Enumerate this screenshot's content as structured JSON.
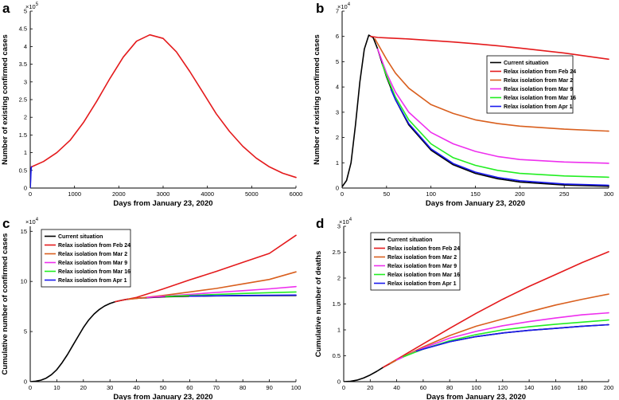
{
  "colors": {
    "current": "#000000",
    "feb24": "#e41a1c",
    "mar2": "#d95f1e",
    "mar9": "#ee2fee",
    "mar16": "#22ee22",
    "apr1": "#1a1aee"
  },
  "chart_data": [
    {
      "panel": "a",
      "type": "line",
      "xlabel": "Days from January 23, 2020",
      "ylabel": "Number of existing confirmed cases",
      "y_exponent": "5",
      "xlim": [
        0,
        6000
      ],
      "ylim": [
        0,
        500000
      ],
      "xticks": [
        0,
        1000,
        2000,
        3000,
        4000,
        5000,
        6000
      ],
      "yticks": [
        0,
        0.5,
        1,
        1.5,
        2,
        2.5,
        3,
        3.5,
        4,
        4.5,
        5
      ],
      "y_scale": 100000,
      "legend": null,
      "series": [
        {
          "name": "Relax isolation",
          "color_key": "feb24",
          "x": [
            0,
            30,
            300,
            600,
            900,
            1200,
            1500,
            1800,
            2100,
            2400,
            2700,
            3000,
            3300,
            3600,
            3900,
            4200,
            4500,
            4800,
            5100,
            5400,
            5700,
            6000
          ],
          "y": [
            60000,
            60000,
            75000,
            100000,
            135000,
            185000,
            245000,
            310000,
            370000,
            415000,
            433000,
            423000,
            385000,
            330000,
            270000,
            210000,
            160000,
            118000,
            85000,
            60000,
            42000,
            30000
          ]
        },
        {
          "name": "Current situation",
          "color_key": "apr1",
          "x": [
            0,
            3,
            6,
            10,
            14,
            18,
            22,
            26,
            30
          ],
          "y": [
            0,
            5000,
            12000,
            25000,
            38000,
            48000,
            55000,
            59000,
            60000
          ]
        }
      ]
    },
    {
      "panel": "b",
      "type": "line",
      "xlabel": "Days from January 23, 2020",
      "ylabel": "Number of existing confirmed cases",
      "y_exponent": "4",
      "xlim": [
        0,
        300
      ],
      "ylim": [
        0,
        70000
      ],
      "xticks": [
        0,
        50,
        100,
        150,
        200,
        250,
        300
      ],
      "yticks": [
        0,
        1,
        2,
        3,
        4,
        5,
        6,
        7
      ],
      "y_scale": 10000,
      "legend": "right",
      "series": [
        {
          "name": "Current situation",
          "color_key": "current",
          "x": [
            0,
            5,
            10,
            15,
            20,
            25,
            30,
            35,
            40,
            50,
            60,
            75,
            100,
            125,
            150,
            175,
            200,
            250,
            300
          ],
          "y": [
            500,
            3000,
            10000,
            25000,
            42000,
            55000,
            60500,
            59500,
            55000,
            44000,
            35000,
            25000,
            15000,
            9200,
            5800,
            3700,
            2400,
            1200,
            700
          ]
        },
        {
          "name": "Relax isolation from Feb 24",
          "color_key": "feb24",
          "x": [
            32,
            40,
            50,
            75,
            100,
            125,
            150,
            175,
            200,
            250,
            300
          ],
          "y": [
            60000,
            59600,
            59400,
            59000,
            58400,
            57800,
            57100,
            56300,
            55400,
            53400,
            51000
          ]
        },
        {
          "name": "Relax isolation from Mar 2",
          "color_key": "mar2",
          "x": [
            37,
            50,
            60,
            75,
            100,
            125,
            150,
            175,
            200,
            250,
            300
          ],
          "y": [
            59000,
            51000,
            45500,
            39500,
            33000,
            29500,
            27000,
            25500,
            24500,
            23300,
            22500
          ]
        },
        {
          "name": "Relax isolation from Mar 9",
          "color_key": "mar9",
          "x": [
            40,
            50,
            60,
            75,
            100,
            125,
            150,
            175,
            200,
            250,
            300
          ],
          "y": [
            55000,
            45500,
            38000,
            30000,
            22000,
            17500,
            14500,
            12500,
            11300,
            10300,
            9800
          ]
        },
        {
          "name": "Relax isolation from Mar 16",
          "color_key": "mar16",
          "x": [
            45,
            50,
            60,
            75,
            100,
            125,
            150,
            175,
            200,
            250,
            300
          ],
          "y": [
            49000,
            44500,
            36000,
            27000,
            17500,
            12000,
            9000,
            7000,
            5800,
            4800,
            4300
          ]
        },
        {
          "name": "Relax isolation from Apr 1",
          "color_key": "apr1",
          "x": [
            55,
            60,
            75,
            100,
            125,
            150,
            175,
            200,
            250,
            300
          ],
          "y": [
            39000,
            35000,
            25500,
            15500,
            9700,
            6300,
            4200,
            2900,
            1600,
            1100
          ]
        }
      ]
    },
    {
      "panel": "c",
      "type": "line",
      "xlabel": "Days from January 23, 2020",
      "ylabel": "Cumulative number of confirmed cases",
      "y_exponent": "4",
      "xlim": [
        0,
        100
      ],
      "ylim": [
        0,
        155000
      ],
      "xticks": [
        0,
        10,
        20,
        30,
        40,
        50,
        60,
        70,
        80,
        90,
        100
      ],
      "yticks": [
        0,
        5,
        10,
        15
      ],
      "y_scale": 10000,
      "legend": "top-left",
      "series": [
        {
          "name": "Current situation",
          "color_key": "current",
          "x": [
            0,
            2,
            4,
            6,
            8,
            10,
            12,
            14,
            16,
            18,
            20,
            22,
            24,
            26,
            28,
            30,
            32,
            34,
            36,
            40,
            50,
            60,
            70,
            80,
            90,
            100
          ],
          "y": [
            0,
            500,
            1500,
            3500,
            7000,
            12000,
            19000,
            27000,
            36000,
            45000,
            54000,
            61500,
            67500,
            72000,
            75500,
            78000,
            79800,
            81000,
            82000,
            83200,
            84600,
            85300,
            85600,
            85800,
            85900,
            86000
          ]
        },
        {
          "name": "Relax isolation from Feb 24",
          "color_key": "feb24",
          "x": [
            32,
            35,
            40,
            50,
            60,
            70,
            80,
            90,
            100
          ],
          "y": [
            79800,
            81500,
            84000,
            92500,
            101500,
            110000,
            119000,
            128000,
            146000
          ]
        },
        {
          "name": "Relax isolation from Mar 2",
          "color_key": "mar2",
          "x": [
            37,
            40,
            50,
            60,
            70,
            80,
            90,
            100
          ],
          "y": [
            82200,
            83000,
            86000,
            89500,
            93000,
            97500,
            102000,
            109500
          ]
        },
        {
          "name": "Relax isolation from Mar 9",
          "color_key": "mar9",
          "x": [
            44,
            50,
            60,
            70,
            80,
            90,
            100
          ],
          "y": [
            84000,
            85200,
            87000,
            89000,
            90800,
            92600,
            94800
          ]
        },
        {
          "name": "Relax isolation from Mar 16",
          "color_key": "mar16",
          "x": [
            51,
            60,
            70,
            80,
            90,
            100
          ],
          "y": [
            85000,
            86000,
            87000,
            88000,
            88800,
            89500
          ]
        },
        {
          "name": "Relax isolation from Apr 1",
          "color_key": "apr1",
          "x": [
            60,
            70,
            80,
            90,
            100
          ],
          "y": [
            85300,
            85700,
            86000,
            86200,
            86400
          ]
        }
      ]
    },
    {
      "panel": "d",
      "type": "line",
      "xlabel": "Days from January 23, 2020",
      "ylabel": "Cumulative number of deaths",
      "y_exponent": "4",
      "xlim": [
        0,
        200
      ],
      "ylim": [
        0,
        30000
      ],
      "xticks": [
        0,
        20,
        40,
        60,
        80,
        100,
        120,
        140,
        160,
        180,
        200
      ],
      "yticks": [
        0,
        0.5,
        1,
        1.5,
        2,
        2.5,
        3
      ],
      "y_scale": 10000,
      "legend": "top-left",
      "series": [
        {
          "name": "Current situation",
          "color_key": "current",
          "x": [
            0,
            5,
            10,
            15,
            20,
            25,
            30,
            35,
            40,
            50,
            60,
            70,
            80,
            100,
            120,
            140,
            160,
            180,
            200
          ],
          "y": [
            0,
            80,
            300,
            700,
            1300,
            2000,
            2800,
            3500,
            4200,
            5400,
            6300,
            7000,
            7700,
            8700,
            9400,
            9900,
            10300,
            10700,
            11000
          ]
        },
        {
          "name": "Relax isolation from Feb 24",
          "color_key": "feb24",
          "x": [
            30,
            40,
            60,
            80,
            100,
            120,
            140,
            160,
            180,
            200
          ],
          "y": [
            2800,
            4300,
            7300,
            10300,
            13200,
            15900,
            18400,
            20700,
            23000,
            25100
          ]
        },
        {
          "name": "Relax isolation from Mar 2",
          "color_key": "mar2",
          "x": [
            35,
            40,
            60,
            80,
            100,
            120,
            140,
            160,
            180,
            200
          ],
          "y": [
            3500,
            4200,
            6700,
            8900,
            10700,
            12100,
            13500,
            14800,
            15900,
            16900
          ]
        },
        {
          "name": "Relax isolation from Mar 9",
          "color_key": "mar9",
          "x": [
            40,
            60,
            80,
            100,
            120,
            140,
            160,
            180,
            200
          ],
          "y": [
            4200,
            6500,
            8400,
            9700,
            10800,
            11600,
            12300,
            12900,
            13300
          ]
        },
        {
          "name": "Relax isolation from Mar 16",
          "color_key": "mar16",
          "x": [
            45,
            60,
            80,
            100,
            120,
            140,
            160,
            180,
            200
          ],
          "y": [
            4800,
            6300,
            7900,
            9100,
            10000,
            10600,
            11100,
            11500,
            11900
          ]
        },
        {
          "name": "Relax isolation from Apr 1",
          "color_key": "apr1",
          "x": [
            55,
            60,
            80,
            100,
            120,
            140,
            160,
            180,
            200
          ],
          "y": [
            5900,
            6300,
            7700,
            8700,
            9400,
            9900,
            10300,
            10700,
            11000
          ]
        }
      ]
    }
  ]
}
